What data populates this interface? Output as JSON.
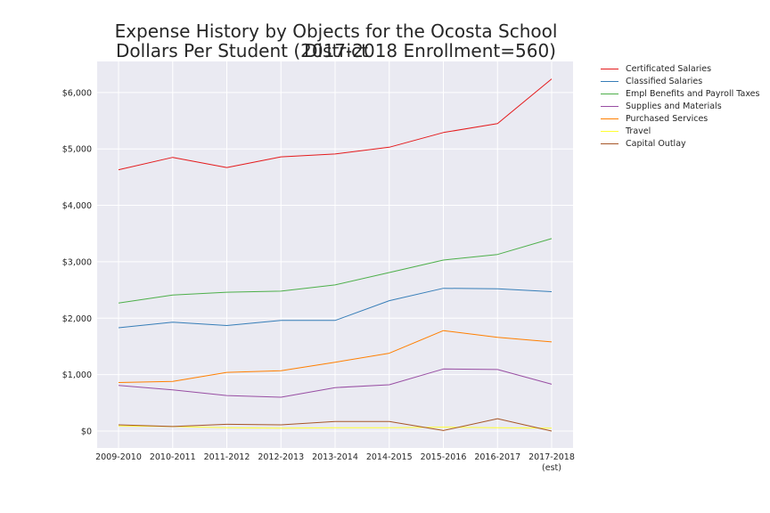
{
  "chart_data": {
    "type": "line",
    "title": "Expense History by Objects for the Ocosta School District",
    "subtitle": "Dollars Per Student (2017-2018 Enrollment=560)",
    "xlabel": "",
    "ylabel": "",
    "categories": [
      "2009-2010",
      "2010-2011",
      "2011-2012",
      "2012-2013",
      "2013-2014",
      "2014-2015",
      "2015-2016",
      "2016-2017",
      "2017-2018"
    ],
    "category_sublabels": [
      "",
      "",
      "",
      "",
      "",
      "",
      "",
      "",
      "(est)"
    ],
    "y_ticks": [
      0,
      1000,
      2000,
      3000,
      4000,
      5000,
      6000
    ],
    "y_tick_labels": [
      "$0",
      "$1,000",
      "$2,000",
      "$3,000",
      "$4,000",
      "$5,000",
      "$6,000"
    ],
    "ylim": [
      -300,
      6550
    ],
    "grid": true,
    "legend_position": "outside-right",
    "series": [
      {
        "name": "Certificated Salaries",
        "color": "#e41a1c",
        "values": [
          4630,
          4850,
          4670,
          4860,
          4910,
          5030,
          5290,
          5450,
          6240
        ]
      },
      {
        "name": "Classified Salaries",
        "color": "#377eb8",
        "values": [
          1830,
          1930,
          1870,
          1960,
          1960,
          2310,
          2530,
          2520,
          2470
        ]
      },
      {
        "name": "Empl Benefits and Payroll Taxes",
        "color": "#4daf4a",
        "values": [
          2270,
          2410,
          2460,
          2480,
          2590,
          2810,
          3030,
          3130,
          3410
        ]
      },
      {
        "name": "Supplies and Materials",
        "color": "#984ea3",
        "values": [
          810,
          730,
          630,
          600,
          770,
          820,
          1100,
          1090,
          830
        ]
      },
      {
        "name": "Purchased Services",
        "color": "#ff7f00",
        "values": [
          860,
          880,
          1040,
          1070,
          1220,
          1380,
          1780,
          1660,
          1580
        ]
      },
      {
        "name": "Travel",
        "color": "#ffff33",
        "values": [
          90,
          80,
          60,
          50,
          60,
          60,
          70,
          60,
          50
        ]
      },
      {
        "name": "Capital Outlay",
        "color": "#a65628",
        "values": [
          110,
          80,
          120,
          110,
          170,
          170,
          10,
          220,
          0
        ]
      }
    ]
  }
}
